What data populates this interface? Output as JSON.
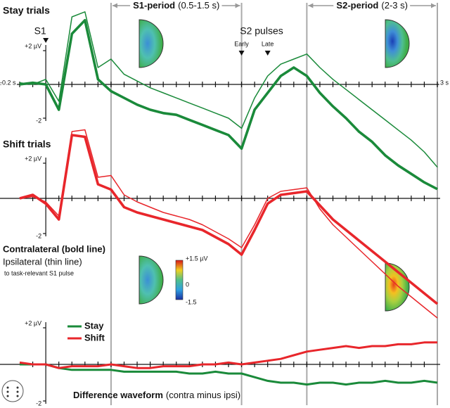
{
  "figure": {
    "stimuli": [
      {
        "label": "S1",
        "time": 0
      }
    ],
    "s2": {
      "label": "S2 pulses",
      "pulses": [
        {
          "label": "Early",
          "time": 1.5
        },
        {
          "label": "Late",
          "time": 1.7
        }
      ]
    },
    "periods": [
      {
        "label": "S1-period",
        "range": "(0.5-1.5 s)",
        "start": 0.5,
        "end": 1.5
      },
      {
        "label": "S2-period",
        "range": "(2-3 s)",
        "start": 2,
        "end": 3
      }
    ],
    "note": "to task-relevant S1 pulse",
    "colorbar": {
      "labels": [
        "+1.5 µV",
        "0",
        "-1.5"
      ]
    }
  },
  "chart_data": [
    {
      "type": "line",
      "title": "Stay trials",
      "color": "#1a8a3a",
      "xlim": [
        -0.2,
        3
      ],
      "xticks": [
        {
          "value": -0.2,
          "label": "-0.2 s"
        },
        {
          "value": 3,
          "label": "3 s"
        }
      ],
      "xminor": [
        -0.1,
        0,
        0.1,
        0.2,
        0.3,
        0.4,
        0.5,
        0.6,
        0.7,
        0.8,
        0.9,
        1,
        1.1,
        1.2,
        1.3,
        1.4,
        1.5,
        1.6,
        1.7,
        1.8,
        1.9,
        2,
        2.1,
        2.2,
        2.3,
        2.4,
        2.5,
        2.6,
        2.7,
        2.8,
        2.9
      ],
      "ylim": [
        -6.5,
        4.7
      ],
      "yticks": [
        {
          "value": 2,
          "label": "+2 µV"
        },
        -2
      ],
      "x": [
        -0.2,
        -0.1,
        0,
        0.1,
        0.2,
        0.3,
        0.4,
        0.5,
        0.6,
        0.7,
        0.8,
        0.9,
        1,
        1.1,
        1.2,
        1.3,
        1.4,
        1.5,
        1.6,
        1.7,
        1.8,
        1.9,
        2,
        2.1,
        2.2,
        2.3,
        2.4,
        2.5,
        2.6,
        2.7,
        2.8,
        2.9,
        3
      ],
      "series": [
        {
          "color": "#1a8a3a",
          "line": "bold",
          "values": [
            0,
            0.1,
            0,
            -1.5,
            3,
            3.8,
            0.3,
            -0.4,
            -0.8,
            -1.2,
            -1.5,
            -1.7,
            -1.8,
            -2.1,
            -2.4,
            -2.7,
            -3,
            -3.8,
            -1.5,
            -0.5,
            0.5,
            1,
            0.5,
            -0.5,
            -1.3,
            -2,
            -2.8,
            -3.4,
            -4.2,
            -4.8,
            -5.3,
            -5.8,
            -6.2
          ]
        },
        {
          "color": "#1a8a3a",
          "line": "thin",
          "values": [
            0.1,
            0,
            0.3,
            -1,
            4,
            4.3,
            1,
            1.5,
            0.6,
            0.2,
            -0.2,
            -0.5,
            -0.8,
            -1.1,
            -1.4,
            -1.7,
            -2,
            -2.6,
            -0.8,
            0.5,
            1.2,
            1.5,
            1.8,
            1,
            0.3,
            -0.3,
            -0.9,
            -1.5,
            -2.1,
            -2.7,
            -3.3,
            -4,
            -4.9
          ]
        }
      ]
    },
    {
      "type": "line",
      "title": "Shift trials",
      "color": "#e8262b",
      "xlim": [
        -0.2,
        3
      ],
      "ylim": [
        -7.5,
        4.7
      ],
      "yticks": [
        {
          "value": 2,
          "label": "+2 µV"
        },
        -2
      ],
      "x": [
        -0.2,
        -0.1,
        0,
        0.1,
        0.2,
        0.3,
        0.4,
        0.5,
        0.6,
        0.7,
        0.8,
        0.9,
        1,
        1.1,
        1.2,
        1.3,
        1.4,
        1.5,
        1.6,
        1.7,
        1.8,
        1.9,
        2,
        2.1,
        2.2,
        2.3,
        2.4,
        2.5,
        2.6,
        2.7,
        2.8,
        2.9,
        3
      ],
      "series": [
        {
          "name": "Contralateral (bold line)",
          "color": "#e8262b",
          "line": "bold",
          "values": [
            0,
            0.2,
            -0.3,
            -1.2,
            3.6,
            3.5,
            0.8,
            0.5,
            -0.5,
            -0.8,
            -1,
            -1.2,
            -1.4,
            -1.6,
            -1.8,
            -2.2,
            -2.6,
            -3.2,
            -1.8,
            -0.3,
            0.2,
            0.3,
            0.4,
            -0.4,
            -1.2,
            -1.8,
            -2.4,
            -3,
            -3.6,
            -4.2,
            -4.8,
            -5.4,
            -6
          ]
        },
        {
          "name": "Ipsilateral (thin line)",
          "color": "#e8262b",
          "line": "thin",
          "values": [
            0,
            0.1,
            -0.2,
            -1,
            3.8,
            3.9,
            1.2,
            1.3,
            0.2,
            -0.2,
            -0.5,
            -0.8,
            -1,
            -1.2,
            -1.5,
            -1.9,
            -2.3,
            -2.8,
            -1.5,
            0,
            0.4,
            0.5,
            0.6,
            -0.6,
            -1.5,
            -2.2,
            -2.9,
            -3.6,
            -4.3,
            -5,
            -5.6,
            -6.2,
            -6.8
          ]
        }
      ]
    },
    {
      "type": "line",
      "title": "Difference waveform",
      "title_note": "(contra minus ipsi)",
      "xlim": [
        -0.2,
        3
      ],
      "ylim": [
        -2.2,
        2.2
      ],
      "yticks": [
        {
          "value": 2,
          "label": "+2 µV"
        },
        -2
      ],
      "x": [
        -0.2,
        -0.1,
        0,
        0.1,
        0.2,
        0.3,
        0.4,
        0.5,
        0.6,
        0.7,
        0.8,
        0.9,
        1,
        1.1,
        1.2,
        1.3,
        1.4,
        1.5,
        1.6,
        1.7,
        1.8,
        1.9,
        2,
        2.1,
        2.2,
        2.3,
        2.4,
        2.5,
        2.6,
        2.7,
        2.8,
        2.9,
        3
      ],
      "series": [
        {
          "name": "Stay",
          "color": "#1a8a3a",
          "line": "mid",
          "values": [
            0,
            0,
            0,
            -0.2,
            -0.3,
            -0.3,
            -0.3,
            -0.3,
            -0.4,
            -0.4,
            -0.4,
            -0.4,
            -0.4,
            -0.5,
            -0.5,
            -0.4,
            -0.5,
            -0.5,
            -0.7,
            -0.9,
            -1,
            -1,
            -1.1,
            -1,
            -1,
            -1.1,
            -1,
            -1,
            -0.9,
            -1,
            -1,
            -0.9,
            -1
          ]
        },
        {
          "name": "Shift",
          "color": "#e8262b",
          "line": "mid",
          "values": [
            0.1,
            0,
            0,
            -0.2,
            -0.1,
            -0.1,
            -0.1,
            0,
            -0.1,
            -0.2,
            -0.2,
            -0.1,
            -0.1,
            -0.1,
            0,
            0,
            0.1,
            0,
            0.1,
            0.2,
            0.3,
            0.5,
            0.7,
            0.8,
            0.9,
            1,
            0.9,
            1,
            1,
            1.1,
            1.1,
            1.2,
            1.2
          ]
        }
      ]
    }
  ]
}
